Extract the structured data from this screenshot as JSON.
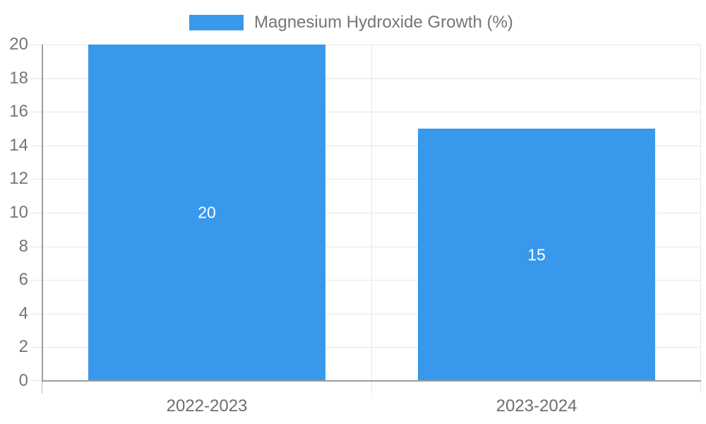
{
  "chart_data": {
    "type": "bar",
    "title": "Magnesium Hydroxide Growth (%)",
    "legend": {
      "label": "Magnesium Hydroxide Growth (%)",
      "position": "top"
    },
    "categories": [
      "2022-2023",
      "2023-2024"
    ],
    "series": [
      {
        "name": "Magnesium Hydroxide Growth (%)",
        "values": [
          20,
          15
        ]
      }
    ],
    "values": [
      20,
      15
    ],
    "value_labels": [
      "20",
      "15"
    ],
    "xlabel": "",
    "ylabel": "",
    "ylim": [
      0,
      20
    ],
    "ytick_step": 2,
    "yticks": [
      0,
      2,
      4,
      6,
      8,
      10,
      12,
      14,
      16,
      18,
      20
    ],
    "grid": true,
    "colors": {
      "bar": "#3899EC",
      "value_label": "#FFFFFF",
      "axis": "#9E9E9E",
      "gridline": "#E6E6E6",
      "tick_label": "#757575",
      "x_tick_label": "#6E6E6E",
      "background": "#FFFFFF"
    }
  }
}
